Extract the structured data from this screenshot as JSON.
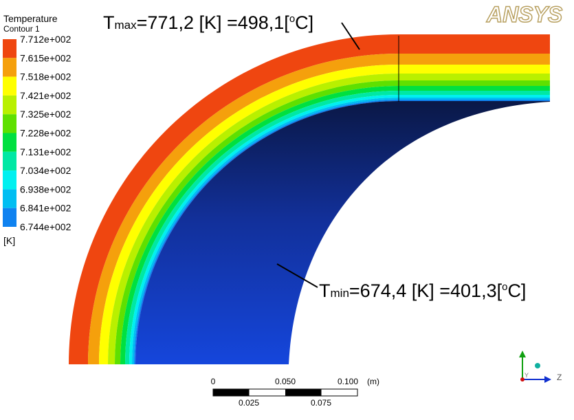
{
  "legend": {
    "title": "Temperature",
    "subtitle": "Contour 1",
    "levels": [
      "7.712e+002",
      "7.615e+002",
      "7.518e+002",
      "7.421e+002",
      "7.325e+002",
      "7.228e+002",
      "7.131e+002",
      "7.034e+002",
      "6.938e+002",
      "6.841e+002",
      "6.744e+002"
    ],
    "colors": [
      "#ef4610",
      "#f5a00c",
      "#ffff00",
      "#b9f000",
      "#5fe000",
      "#00e040",
      "#00e8a4",
      "#00f0f0",
      "#00bef2",
      "#0f82f0"
    ],
    "unit": "[K]"
  },
  "annotations": {
    "tmax": {
      "symbol": "T",
      "sub": "max",
      "text": "=771,2 [K] =498,1[",
      "sup": "o",
      "end": "C]"
    },
    "tmin": {
      "symbol": "T",
      "sub": "min",
      "text": "=674,4 [K] =401,3[",
      "sup": "o",
      "end": "C]"
    }
  },
  "logo": "ANSYS",
  "scale_bar": {
    "top_labels": [
      "0",
      "0.050",
      "0.100"
    ],
    "unit": "(m)",
    "bottom_labels": [
      "0.025",
      "0.075"
    ]
  },
  "axes": {
    "y": "Y",
    "z": "Z"
  }
}
